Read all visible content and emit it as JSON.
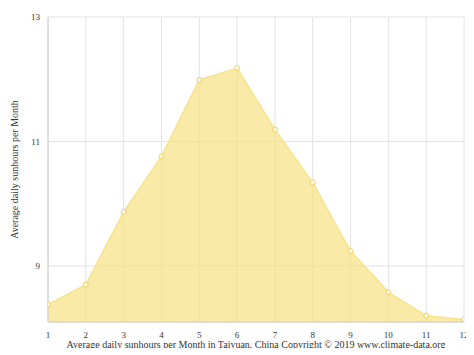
{
  "chart_data": {
    "type": "area",
    "title": "Average daily sunhours per Month in Taiyuan, China Copyright © 2019 www.climate-data.org",
    "y_label": "Average daily sunhours per Month",
    "x": [
      1,
      2,
      3,
      4,
      5,
      6,
      7,
      8,
      9,
      10,
      11,
      12
    ],
    "values": [
      8.38,
      8.7,
      9.87,
      10.76,
      11.99,
      12.18,
      11.19,
      10.34,
      9.24,
      8.58,
      8.2,
      8.14
    ],
    "color": "#f8e38a",
    "xlim": [
      1,
      12
    ],
    "xticks": [
      1,
      2,
      3,
      4,
      5,
      6,
      7,
      8,
      9,
      10,
      11,
      12
    ],
    "ylim": [
      8.1,
      13
    ],
    "yticks": [
      9,
      11,
      13
    ],
    "grid": true,
    "marker": "circle"
  }
}
